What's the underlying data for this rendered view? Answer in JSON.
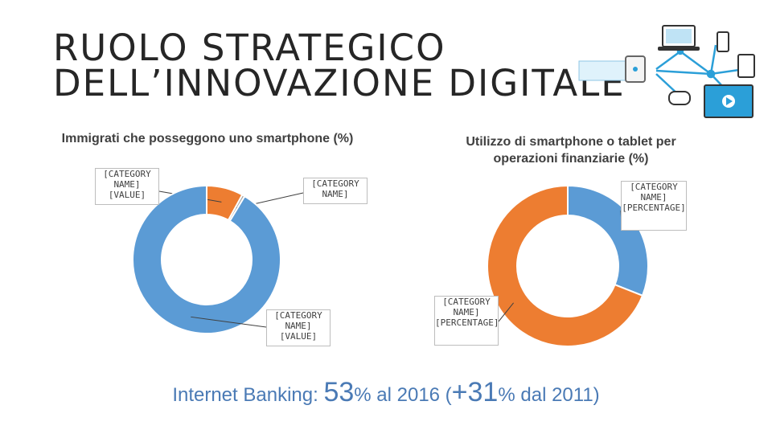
{
  "title": {
    "line1": "RUOLO STRATEGICO",
    "line2": "DELL’INNOVAZIONE DIGITALE"
  },
  "chart_data": [
    {
      "type": "pie",
      "title": "Immigrati che posseggono uno smartphone (%)",
      "slices": [
        {
          "label": "[CATEGORY NAME] [VALUE]",
          "value": 8,
          "color": "#ed7d31"
        },
        {
          "label": "[CATEGORY NAME]",
          "value": 0.6,
          "color": "#a5a5a5"
        },
        {
          "label": "[CATEGORY NAME] [VALUE]",
          "value": 91.4,
          "color": "#5b9bd5"
        }
      ]
    },
    {
      "type": "pie",
      "title": "Utilizzo di smartphone o tablet per operazioni finanziarie (%)",
      "slices": [
        {
          "label": "[CATEGORY NAME] [PERCENTAGE]",
          "value": 31,
          "color": "#5b9bd5"
        },
        {
          "label": "[CATEGORY NAME] [PERCENTAGE]",
          "value": 69,
          "color": "#ed7d31"
        }
      ]
    }
  ],
  "footer": {
    "prefix": "Internet Banking: ",
    "value1": "53",
    "mid": "% al 2016 (",
    "value2": "+31",
    "suffix": "% dal 2011)"
  },
  "colors": {
    "title": "#262626",
    "footer": "#4a7ab5"
  },
  "decoration": {
    "icon": "connected-devices-illustration"
  }
}
